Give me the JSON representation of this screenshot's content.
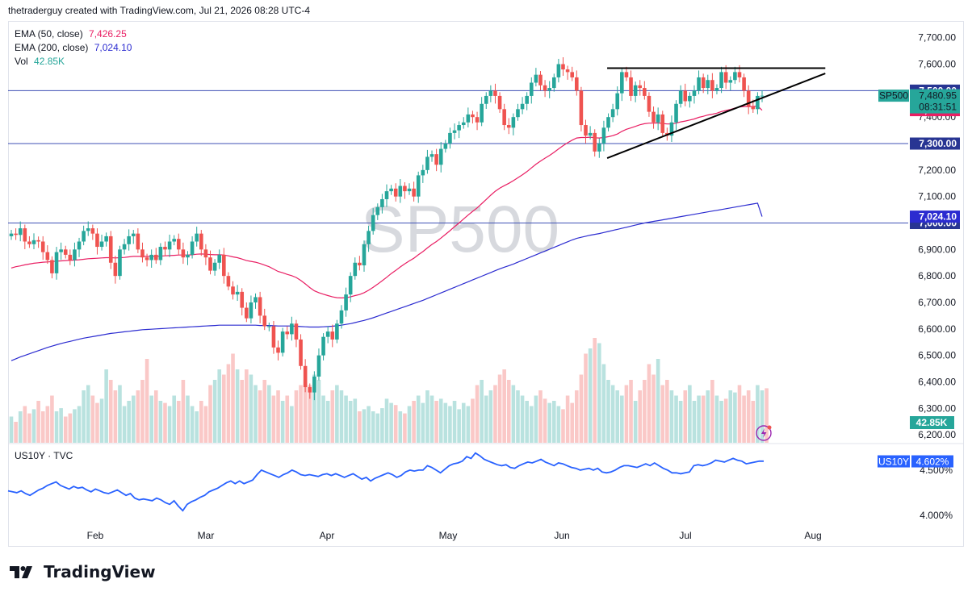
{
  "header": {
    "credit": "thetraderguy created with TradingView.com, Jul 21, 2026 08:28 UTC-4"
  },
  "watermark": "SP500",
  "legend": {
    "ema50_label": "EMA (50, close)",
    "ema50_value": "7,426.25",
    "ema200_label": "EMA (200, close)",
    "ema200_value": "7,024.10",
    "vol_label": "Vol",
    "vol_value": "42.85K"
  },
  "lower_pane": {
    "label": "US10Y · TVC",
    "ticker": "US10Y",
    "value": "4.602%",
    "ticks": [
      "4.500%",
      "4.000%"
    ]
  },
  "badges": {
    "symbol": "SP500",
    "last": "7,480.95",
    "countdown": "08:31:51",
    "ema50": "7,426.25",
    "level_7500": "7,500.00",
    "level_7300": "7,300.00",
    "ema200": "7,024.10",
    "level_7000": "7,000.00",
    "vol": "42.85K"
  },
  "footer": {
    "brand": "TradingView"
  },
  "colors": {
    "up": "#26a69a",
    "down": "#ef5350",
    "ema50": "#e91e63",
    "ema200": "#2b2bd0",
    "hline": "#3f51b5",
    "us10y": "#2962ff",
    "grid_text": "#131722"
  },
  "chart_data": {
    "type": "candlestick",
    "symbol": "SP500",
    "y_axis_ticks": [
      "7,700.00",
      "7,600.00",
      "7,500.00",
      "7,400.00",
      "7,300.00",
      "7,200.00",
      "7,100.00",
      "7,000.00",
      "6,900.00",
      "6,800.00",
      "6,700.00",
      "6,600.00",
      "6,500.00",
      "6,400.00",
      "6,300.00",
      "6,200.00"
    ],
    "ylim": [
      6170,
      7760
    ],
    "x_axis_ticks": [
      "Feb",
      "Mar",
      "Apr",
      "May",
      "Jun",
      "Jul",
      "Aug"
    ],
    "horizontal_levels": [
      7500,
      7300,
      7000
    ],
    "trendlines": [
      {
        "from": [
          "2026-06-12",
          7585
        ],
        "to": [
          "2026-08-04",
          7585
        ]
      },
      {
        "from": [
          "2026-06-12",
          7245
        ],
        "to": [
          "2026-08-04",
          7565
        ]
      }
    ],
    "close": [
      6960,
      6955,
      6980,
      6930,
      6920,
      6935,
      6930,
      6890,
      6860,
      6810,
      6890,
      6900,
      6880,
      6860,
      6900,
      6930,
      6970,
      6980,
      6960,
      6910,
      6930,
      6950,
      6850,
      6800,
      6900,
      6920,
      6950,
      6960,
      6900,
      6870,
      6860,
      6880,
      6860,
      6910,
      6900,
      6930,
      6940,
      6900,
      6870,
      6880,
      6930,
      6960,
      6900,
      6870,
      6820,
      6850,
      6880,
      6800,
      6760,
      6730,
      6740,
      6680,
      6640,
      6700,
      6720,
      6650,
      6610,
      6610,
      6530,
      6510,
      6590,
      6580,
      6620,
      6560,
      6460,
      6380,
      6360,
      6420,
      6500,
      6570,
      6590,
      6560,
      6620,
      6670,
      6730,
      6800,
      6850,
      6840,
      6920,
      6970,
      7030,
      7060,
      7090,
      7120,
      7130,
      7100,
      7140,
      7120,
      7130,
      7100,
      7180,
      7200,
      7250,
      7260,
      7220,
      7280,
      7300,
      7340,
      7350,
      7370,
      7380,
      7410,
      7400,
      7380,
      7450,
      7480,
      7500,
      7480,
      7430,
      7370,
      7360,
      7400,
      7430,
      7450,
      7480,
      7530,
      7560,
      7520,
      7500,
      7510,
      7550,
      7600,
      7580,
      7570,
      7550,
      7500,
      7370,
      7330,
      7340,
      7270,
      7300,
      7360,
      7400,
      7430,
      7490,
      7570,
      7550,
      7480,
      7520,
      7510,
      7480,
      7420,
      7380,
      7410,
      7340,
      7330,
      7380,
      7450,
      7500,
      7460,
      7480,
      7500,
      7550,
      7510,
      7540,
      7500,
      7510,
      7570,
      7530,
      7540,
      7570,
      7550,
      7500,
      7440,
      7430,
      7480,
      7481
    ],
    "ema50": [
      6830,
      6835,
      6838,
      6842,
      6845,
      6848,
      6850,
      6852,
      6853,
      6854,
      6856,
      6857,
      6858,
      6859,
      6860,
      6861,
      6863,
      6865,
      6866,
      6867,
      6868,
      6869,
      6869,
      6868,
      6869,
      6870,
      6872,
      6874,
      6874,
      6874,
      6874,
      6874,
      6874,
      6875,
      6876,
      6877,
      6878,
      6879,
      6879,
      6879,
      6880,
      6882,
      6883,
      6882,
      6881,
      6880,
      6880,
      6879,
      6876,
      6872,
      6869,
      6864,
      6858,
      6855,
      6852,
      6847,
      6841,
      6835,
      6826,
      6817,
      6812,
      6806,
      6801,
      6794,
      6783,
      6770,
      6756,
      6744,
      6737,
      6731,
      6726,
      6721,
      6718,
      6717,
      6718,
      6721,
      6726,
      6730,
      6737,
      6746,
      6757,
      6769,
      6782,
      6795,
      6809,
      6821,
      6834,
      6846,
      6857,
      6867,
      6880,
      6892,
      6906,
      6919,
      6930,
      6943,
      6957,
      6971,
      6986,
      7000,
      7015,
      7030,
      7044,
      7057,
      7073,
      7089,
      7105,
      7120,
      7132,
      7141,
      7150,
      7160,
      7171,
      7182,
      7194,
      7208,
      7222,
      7234,
      7245,
      7255,
      7267,
      7280,
      7292,
      7303,
      7313,
      7321,
      7323,
      7323,
      7324,
      7322,
      7321,
      7323,
      7326,
      7330,
      7336,
      7346,
      7354,
      7359,
      7365,
      7371,
      7375,
      7377,
      7377,
      7378,
      7376,
      7374,
      7374,
      7377,
      7382,
      7385,
      7389,
      7393,
      7399,
      7403,
      7408,
      7411,
      7415,
      7421,
      7425,
      7429,
      7434,
      7438,
      7440,
      7440,
      7440,
      7442,
      7426
    ],
    "ema200": [
      6480,
      6487,
      6494,
      6500,
      6506,
      6512,
      6518,
      6524,
      6530,
      6535,
      6540,
      6545,
      6549,
      6553,
      6557,
      6561,
      6565,
      6568,
      6571,
      6574,
      6577,
      6580,
      6583,
      6585,
      6587,
      6589,
      6591,
      6593,
      6595,
      6597,
      6598,
      6599,
      6600,
      6601,
      6602,
      6603,
      6604,
      6605,
      6606,
      6607,
      6608,
      6609,
      6610,
      6611,
      6612,
      6613,
      6614,
      6614,
      6614,
      6614,
      6614,
      6614,
      6614,
      6614,
      6614,
      6613,
      6613,
      6613,
      6612,
      6611,
      6611,
      6611,
      6611,
      6610,
      6609,
      6608,
      6607,
      6607,
      6607,
      6608,
      6609,
      6610,
      6612,
      6614,
      6617,
      6620,
      6624,
      6628,
      6632,
      6637,
      6642,
      6648,
      6654,
      6660,
      6666,
      6672,
      6678,
      6684,
      6690,
      6696,
      6702,
      6708,
      6715,
      6722,
      6729,
      6736,
      6743,
      6750,
      6757,
      6764,
      6771,
      6778,
      6785,
      6792,
      6799,
      6806,
      6813,
      6820,
      6827,
      6833,
      6839,
      6845,
      6852,
      6859,
      6866,
      6873,
      6880,
      6887,
      6894,
      6901,
      6908,
      6915,
      6922,
      6929,
      6936,
      6942,
      6946,
      6950,
      6954,
      6957,
      6960,
      6964,
      6968,
      6972,
      6976,
      6980,
      6984,
      6988,
      6992,
      6996,
      7000,
      7003,
      7006,
      7009,
      7012,
      7015,
      7018,
      7021,
      7024,
      7027,
      7030,
      7033,
      7036,
      7039,
      7042,
      7045,
      7048,
      7051,
      7054,
      7057,
      7060,
      7063,
      7066,
      7069,
      7072,
      7075,
      7024
    ],
    "volume_rel": [
      0.25,
      0.2,
      0.3,
      0.35,
      0.28,
      0.32,
      0.4,
      0.3,
      0.35,
      0.45,
      0.3,
      0.33,
      0.25,
      0.28,
      0.32,
      0.35,
      0.5,
      0.55,
      0.45,
      0.38,
      0.42,
      0.7,
      0.6,
      0.5,
      0.55,
      0.35,
      0.4,
      0.45,
      0.5,
      0.6,
      0.8,
      0.45,
      0.5,
      0.4,
      0.38,
      0.35,
      0.45,
      0.4,
      0.6,
      0.45,
      0.35,
      0.3,
      0.4,
      0.35,
      0.55,
      0.6,
      0.7,
      0.65,
      0.75,
      0.85,
      0.7,
      0.6,
      0.7,
      0.65,
      0.55,
      0.5,
      0.6,
      0.55,
      0.45,
      0.5,
      0.4,
      0.45,
      0.35,
      0.5,
      0.55,
      0.6,
      0.55,
      0.65,
      0.6,
      0.45,
      0.4,
      0.5,
      0.55,
      0.5,
      0.45,
      0.4,
      0.42,
      0.3,
      0.32,
      0.35,
      0.3,
      0.28,
      0.33,
      0.42,
      0.38,
      0.36,
      0.3,
      0.28,
      0.35,
      0.4,
      0.45,
      0.38,
      0.5,
      0.45,
      0.4,
      0.42,
      0.38,
      0.35,
      0.4,
      0.32,
      0.38,
      0.35,
      0.42,
      0.55,
      0.6,
      0.45,
      0.5,
      0.55,
      0.65,
      0.7,
      0.6,
      0.55,
      0.5,
      0.45,
      0.4,
      0.35,
      0.45,
      0.5,
      0.42,
      0.38,
      0.4,
      0.35,
      0.32,
      0.45,
      0.38,
      0.5,
      0.65,
      0.85,
      0.9,
      1.0,
      0.95,
      0.75,
      0.6,
      0.55,
      0.5,
      0.45,
      0.55,
      0.6,
      0.4,
      0.5,
      0.6,
      0.75,
      0.65,
      0.8,
      0.55,
      0.6,
      0.5,
      0.45,
      0.4,
      0.5,
      0.55,
      0.4,
      0.45,
      0.45,
      0.5,
      0.6,
      0.45,
      0.4,
      0.42,
      0.5,
      0.48,
      0.55,
      0.45,
      0.5,
      0.4,
      0.55,
      0.5,
      0.52
    ],
    "us10y_ylim": [
      3.9,
      4.75
    ],
    "us10y": [
      4.27,
      4.26,
      4.25,
      4.27,
      4.24,
      4.22,
      4.25,
      4.28,
      4.3,
      4.33,
      4.35,
      4.37,
      4.33,
      4.31,
      4.29,
      4.32,
      4.3,
      4.31,
      4.28,
      4.26,
      4.29,
      4.27,
      4.25,
      4.24,
      4.26,
      4.28,
      4.25,
      4.22,
      4.24,
      4.19,
      4.17,
      4.18,
      4.17,
      4.16,
      4.19,
      4.17,
      4.14,
      4.12,
      4.16,
      4.1,
      4.05,
      4.12,
      4.15,
      4.17,
      4.2,
      4.22,
      4.26,
      4.28,
      4.3,
      4.33,
      4.36,
      4.38,
      4.35,
      4.38,
      4.35,
      4.37,
      4.39,
      4.45,
      4.5,
      4.48,
      4.46,
      4.44,
      4.42,
      4.45,
      4.47,
      4.5,
      4.48,
      4.45,
      4.44,
      4.45,
      4.44,
      4.43,
      4.45,
      4.46,
      4.44,
      4.46,
      4.44,
      4.42,
      4.44,
      4.46,
      4.43,
      4.4,
      4.42,
      4.38,
      4.41,
      4.43,
      4.45,
      4.47,
      4.45,
      4.42,
      4.44,
      4.48,
      4.5,
      4.49,
      4.5,
      4.5,
      4.55,
      4.53,
      4.5,
      4.47,
      4.51,
      4.55,
      4.57,
      4.58,
      4.6,
      4.65,
      4.63,
      4.69,
      4.66,
      4.62,
      4.6,
      4.58,
      4.56,
      4.55,
      4.56,
      4.53,
      4.52,
      4.55,
      4.57,
      4.59,
      4.58,
      4.6,
      4.62,
      4.59,
      4.57,
      4.55,
      4.58,
      4.57,
      4.55,
      4.53,
      4.52,
      4.5,
      4.51,
      4.52,
      4.5,
      4.52,
      4.48,
      4.47,
      4.48,
      4.5,
      4.53,
      4.55,
      4.55,
      4.54,
      4.53,
      4.55,
      4.57,
      4.55,
      4.58,
      4.55,
      4.52,
      4.5,
      4.47,
      4.47,
      4.46,
      4.47,
      4.48,
      4.55,
      4.56,
      4.55,
      4.56,
      4.58,
      4.61,
      4.6,
      4.59,
      4.61,
      4.63,
      4.61,
      4.6,
      4.57,
      4.58,
      4.59,
      4.6,
      4.6
    ]
  }
}
